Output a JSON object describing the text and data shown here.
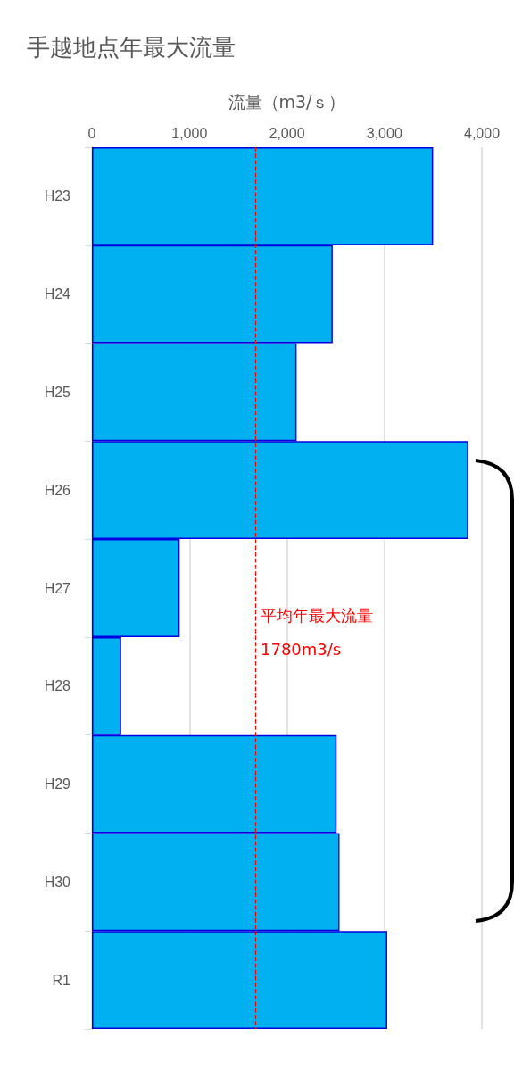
{
  "chart_data": {
    "type": "bar",
    "orientation": "horizontal",
    "title": "手越地点年最大流量",
    "xlabel": "流量（m3/ｓ）",
    "categories": [
      "H23",
      "H24",
      "H25",
      "H26",
      "H27",
      "H28",
      "H29",
      "H30",
      "R1"
    ],
    "values": [
      3500,
      2470,
      2100,
      3860,
      900,
      300,
      2510,
      2540,
      3030
    ],
    "color": "#00b0f0",
    "xlim": [
      0,
      4000
    ],
    "xticks": [
      {
        "value": 0,
        "label": "0"
      },
      {
        "value": 1000,
        "label": "1,000"
      },
      {
        "value": 2000,
        "label": "2,000"
      },
      {
        "value": 3000,
        "label": "3,000"
      },
      {
        "value": 4000,
        "label": "4,000"
      }
    ],
    "grid": "x",
    "ref_lines": [
      {
        "axis": "x",
        "value": 1675,
        "color": "#ff0000",
        "line_style": "dashed"
      }
    ],
    "annotations": [
      "平均年最大流量",
      "1780m3/s"
    ]
  }
}
